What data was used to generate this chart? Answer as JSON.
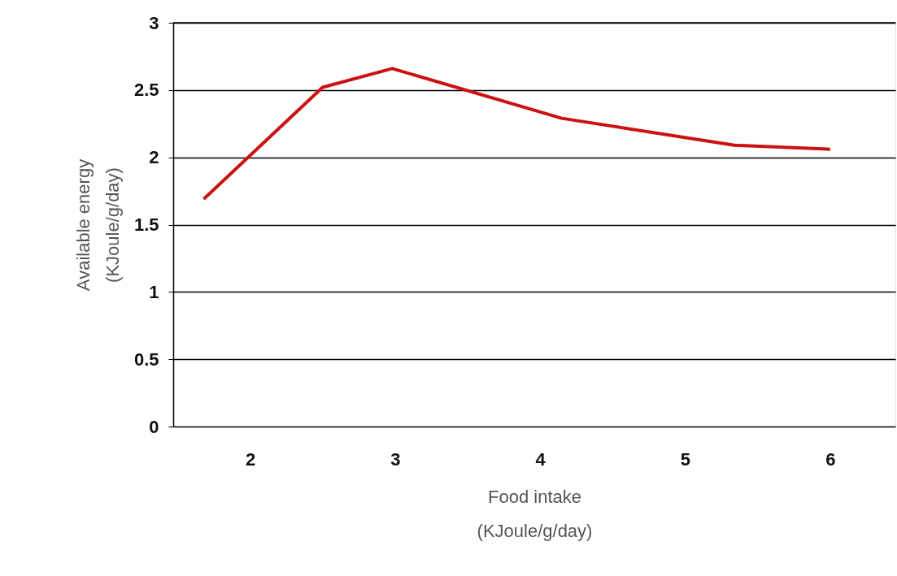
{
  "chart_data": {
    "type": "line",
    "xlabel": "Food intake\n(KJoule/g/day)",
    "ylabel": "Available energy\n(KJoule/g/day)",
    "series": [
      {
        "color": "#cc1111",
        "x": [
          1.68,
          2.5,
          2.98,
          4.15,
          5.34,
          6.0
        ],
        "values": [
          1.69,
          2.52,
          2.66,
          2.29,
          2.09,
          2.06
        ]
      }
    ],
    "xlim": [
      1.47,
      6.45
    ],
    "xticks": [
      2,
      3,
      4,
      5,
      6
    ],
    "ylim": [
      0,
      3
    ],
    "yticks": [
      0,
      0.5,
      1,
      1.5,
      2,
      2.5,
      3
    ],
    "grid": "y",
    "marker": "none",
    "line_style": "solid"
  }
}
